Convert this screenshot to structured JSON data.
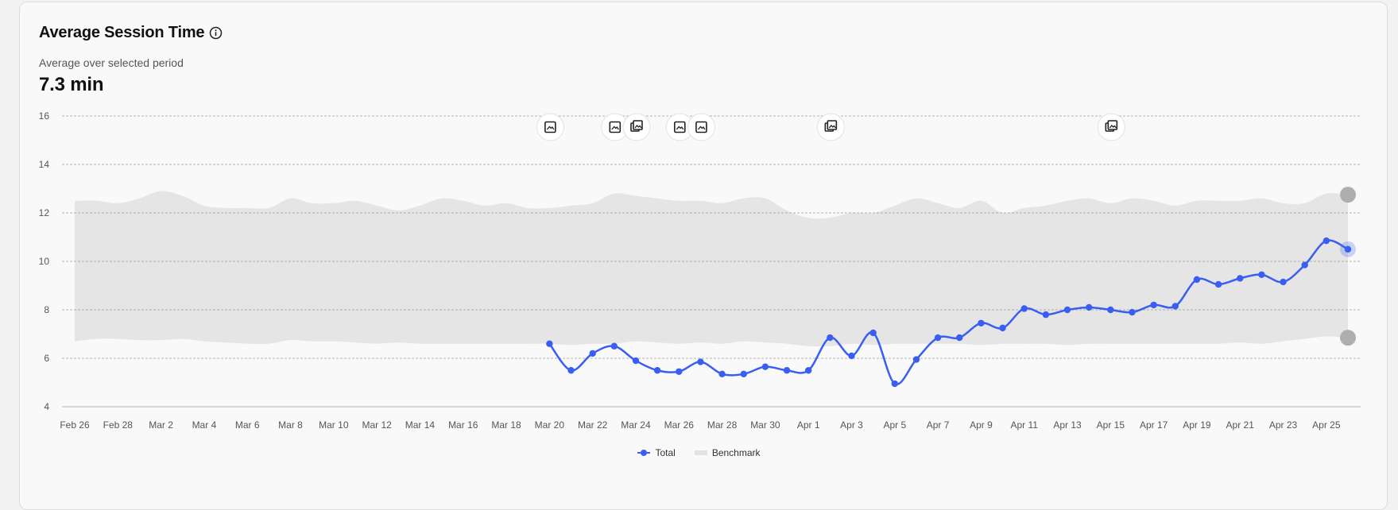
{
  "card": {
    "title": "Average Session Time",
    "subtitle": "Average over selected period",
    "metric": "7.3 min"
  },
  "legend": {
    "total": "Total",
    "benchmark": "Benchmark"
  },
  "colors": {
    "line": "#3a5ef0",
    "band": "#e5e5e5",
    "grid": "#9a9a9a",
    "end_marker": "#aeaeae"
  },
  "chart_data": {
    "type": "line",
    "title": "Average Session Time",
    "ylim": [
      4,
      16
    ],
    "yticks": [
      4,
      6,
      8,
      10,
      12,
      14,
      16
    ],
    "grid": true,
    "legend_position": "bottom-center",
    "x": [
      "Feb 26",
      "Feb 27",
      "Feb 28",
      "Mar 1",
      "Mar 2",
      "Mar 3",
      "Mar 4",
      "Mar 5",
      "Mar 6",
      "Mar 7",
      "Mar 8",
      "Mar 9",
      "Mar 10",
      "Mar 11",
      "Mar 12",
      "Mar 13",
      "Mar 14",
      "Mar 15",
      "Mar 16",
      "Mar 17",
      "Mar 18",
      "Mar 19",
      "Mar 20",
      "Mar 21",
      "Mar 22",
      "Mar 23",
      "Mar 24",
      "Mar 25",
      "Mar 26",
      "Mar 27",
      "Mar 28",
      "Mar 29",
      "Mar 30",
      "Mar 31",
      "Apr 1",
      "Apr 2",
      "Apr 3",
      "Apr 4",
      "Apr 5",
      "Apr 6",
      "Apr 7",
      "Apr 8",
      "Apr 9",
      "Apr 10",
      "Apr 11",
      "Apr 12",
      "Apr 13",
      "Apr 14",
      "Apr 15",
      "Apr 16",
      "Apr 17",
      "Apr 18",
      "Apr 19",
      "Apr 20",
      "Apr 21",
      "Apr 22",
      "Apr 23",
      "Apr 24",
      "Apr 25",
      "Apr 26"
    ],
    "x_tick_labels": [
      "Feb 26",
      "Feb 28",
      "Mar 2",
      "Mar 4",
      "Mar 6",
      "Mar 8",
      "Mar 10",
      "Mar 12",
      "Mar 14",
      "Mar 16",
      "Mar 18",
      "Mar 20",
      "Mar 22",
      "Mar 24",
      "Mar 26",
      "Mar 28",
      "Mar 30",
      "Apr 1",
      "Apr 3",
      "Apr 5",
      "Apr 7",
      "Apr 9",
      "Apr 11",
      "Apr 13",
      "Apr 15",
      "Apr 17",
      "Apr 19",
      "Apr 21",
      "Apr 23",
      "Apr 25"
    ],
    "series": [
      {
        "name": "Total",
        "values": [
          null,
          null,
          null,
          null,
          null,
          null,
          null,
          null,
          null,
          null,
          null,
          null,
          null,
          null,
          null,
          null,
          null,
          null,
          null,
          null,
          null,
          null,
          6.6,
          5.5,
          6.2,
          6.5,
          5.9,
          5.5,
          5.45,
          5.85,
          5.35,
          5.35,
          5.65,
          5.5,
          5.5,
          6.85,
          6.1,
          7.05,
          4.95,
          5.95,
          6.85,
          6.85,
          7.45,
          7.25,
          8.05,
          7.8,
          8.0,
          8.1,
          8.0,
          7.9,
          8.2,
          8.15,
          9.25,
          9.05,
          9.3,
          9.45,
          9.15,
          9.85,
          10.85,
          10.5
        ]
      },
      {
        "name": "Benchmark",
        "upper": [
          12.5,
          12.5,
          12.4,
          12.6,
          12.9,
          12.7,
          12.3,
          12.2,
          12.2,
          12.2,
          12.6,
          12.4,
          12.4,
          12.5,
          12.3,
          12.1,
          12.3,
          12.6,
          12.5,
          12.3,
          12.4,
          12.2,
          12.2,
          12.3,
          12.4,
          12.8,
          12.7,
          12.6,
          12.5,
          12.5,
          12.4,
          12.6,
          12.6,
          12.1,
          11.8,
          11.8,
          12.0,
          12.0,
          12.3,
          12.6,
          12.4,
          12.2,
          12.5,
          12.0,
          12.2,
          12.3,
          12.5,
          12.6,
          12.4,
          12.6,
          12.5,
          12.3,
          12.5,
          12.5,
          12.5,
          12.6,
          12.4,
          12.4,
          12.8,
          12.75
        ],
        "lower": [
          6.7,
          6.8,
          6.8,
          6.75,
          6.75,
          6.8,
          6.7,
          6.65,
          6.6,
          6.6,
          6.75,
          6.7,
          6.7,
          6.65,
          6.6,
          6.65,
          6.6,
          6.6,
          6.6,
          6.6,
          6.6,
          6.6,
          6.6,
          6.55,
          6.6,
          6.6,
          6.7,
          6.65,
          6.6,
          6.65,
          6.6,
          6.7,
          6.65,
          6.6,
          6.5,
          6.5,
          6.6,
          6.55,
          6.6,
          6.6,
          6.6,
          6.6,
          6.55,
          6.6,
          6.6,
          6.6,
          6.55,
          6.6,
          6.6,
          6.6,
          6.6,
          6.6,
          6.6,
          6.6,
          6.65,
          6.6,
          6.7,
          6.8,
          6.9,
          6.85
        ]
      }
    ],
    "annotations": [
      {
        "x": "Mar 20",
        "icon": "image-icon"
      },
      {
        "x": "Mar 23",
        "icon": "image-icon"
      },
      {
        "x": "Mar 24",
        "icon": "gallery-icon"
      },
      {
        "x": "Mar 26",
        "icon": "image-icon"
      },
      {
        "x": "Mar 27",
        "icon": "image-icon"
      },
      {
        "x": "Apr 2",
        "icon": "gallery-icon"
      },
      {
        "x": "Apr 15",
        "icon": "gallery-icon"
      }
    ]
  }
}
